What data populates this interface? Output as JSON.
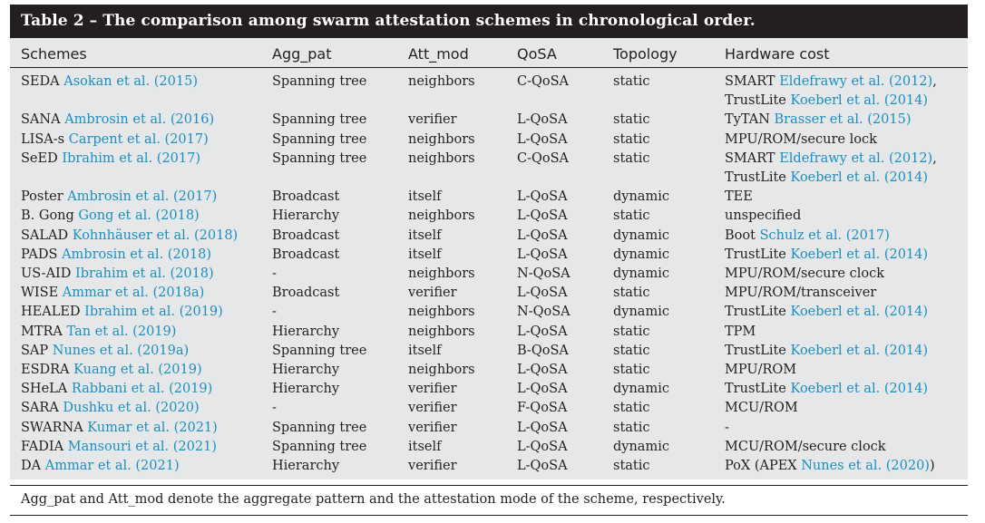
{
  "caption": "Table 2 – The comparison among swarm attestation schemes in chronological order.",
  "headers": [
    "Schemes",
    "Agg_pat",
    "Att_mod",
    "QoSA",
    "Topology",
    "Hardware cost"
  ],
  "rows": [
    {
      "name": "SEDA",
      "cite": "Asokan et al. (2015)",
      "agg": "Spanning tree",
      "att": "neighbors",
      "qosa": "C-QoSA",
      "topo": "static",
      "hw": [
        {
          "t": "SMART ",
          "c": "Eldefrawy et al. (2012)",
          "s": ","
        },
        {
          "t": "TrustLite ",
          "c": "Koeberl et al. (2014)",
          "s": ""
        }
      ]
    },
    {
      "name": "SANA",
      "cite": "Ambrosin et al. (2016)",
      "agg": "Spanning tree",
      "att": "verifier",
      "qosa": "L-QoSA",
      "topo": "static",
      "hw": [
        {
          "t": "TyTAN ",
          "c": "Brasser et al. (2015)",
          "s": ""
        }
      ]
    },
    {
      "name": "LISA-s",
      "cite": "Carpent et al. (2017)",
      "agg": "Spanning tree",
      "att": "neighbors",
      "qosa": "L-QoSA",
      "topo": "static",
      "hw": [
        {
          "t": "MPU/ROM/secure lock",
          "c": "",
          "s": ""
        }
      ]
    },
    {
      "name": "SeED",
      "cite": "Ibrahim et al. (2017)",
      "agg": "Spanning tree",
      "att": "neighbors",
      "qosa": "C-QoSA",
      "topo": "static",
      "hw": [
        {
          "t": "SMART ",
          "c": "Eldefrawy et al. (2012)",
          "s": ","
        },
        {
          "t": "TrustLite ",
          "c": "Koeberl et al. (2014)",
          "s": ""
        }
      ]
    },
    {
      "name": "Poster",
      "cite": "Ambrosin et al. (2017)",
      "agg": "Broadcast",
      "att": "itself",
      "qosa": "L-QoSA",
      "topo": "dynamic",
      "hw": [
        {
          "t": "TEE",
          "c": "",
          "s": ""
        }
      ]
    },
    {
      "name": "B. Gong",
      "cite": "Gong et al. (2018)",
      "agg": "Hierarchy",
      "att": "neighbors",
      "qosa": "L-QoSA",
      "topo": "static",
      "hw": [
        {
          "t": "unspecified",
          "c": "",
          "s": ""
        }
      ]
    },
    {
      "name": "SALAD",
      "cite": "Kohnhäuser et al. (2018)",
      "agg": "Broadcast",
      "att": "itself",
      "qosa": "L-QoSA",
      "topo": "dynamic",
      "hw": [
        {
          "t": "Boot ",
          "c": "Schulz et al. (2017)",
          "s": ""
        }
      ]
    },
    {
      "name": "PADS",
      "cite": "Ambrosin et al. (2018)",
      "agg": "Broadcast",
      "att": "itself",
      "qosa": "L-QoSA",
      "topo": "dynamic",
      "hw": [
        {
          "t": "TrustLite ",
          "c": "Koeberl et al. (2014)",
          "s": ""
        }
      ]
    },
    {
      "name": "US-AID",
      "cite": "Ibrahim et al. (2018)",
      "agg": "-",
      "att": "neighbors",
      "qosa": "N-QoSA",
      "topo": "dynamic",
      "hw": [
        {
          "t": "MPU/ROM/secure clock",
          "c": "",
          "s": ""
        }
      ]
    },
    {
      "name": "WISE",
      "cite": "Ammar et al. (2018a)",
      "agg": "Broadcast",
      "att": "verifier",
      "qosa": "L-QoSA",
      "topo": "static",
      "hw": [
        {
          "t": "MPU/ROM/transceiver",
          "c": "",
          "s": ""
        }
      ]
    },
    {
      "name": "HEALED",
      "cite": "Ibrahim et al. (2019)",
      "agg": "-",
      "att": "neighbors",
      "qosa": "N-QoSA",
      "topo": "dynamic",
      "hw": [
        {
          "t": "TrustLite ",
          "c": "Koeberl et al. (2014)",
          "s": ""
        }
      ]
    },
    {
      "name": "MTRA",
      "cite": "Tan et al. (2019)",
      "agg": "Hierarchy",
      "att": "neighbors",
      "qosa": "L-QoSA",
      "topo": "static",
      "hw": [
        {
          "t": "TPM",
          "c": "",
          "s": ""
        }
      ]
    },
    {
      "name": "SAP",
      "cite": "Nunes et al. (2019a)",
      "agg": "Spanning tree",
      "att": "itself",
      "qosa": "B-QoSA",
      "topo": "static",
      "hw": [
        {
          "t": "TrustLite ",
          "c": "Koeberl et al. (2014)",
          "s": ""
        }
      ]
    },
    {
      "name": "ESDRA",
      "cite": "Kuang et al. (2019)",
      "agg": "Hierarchy",
      "att": "neighbors",
      "qosa": "L-QoSA",
      "topo": "static",
      "hw": [
        {
          "t": "MPU/ROM",
          "c": "",
          "s": ""
        }
      ]
    },
    {
      "name": "SHeLA",
      "cite": "Rabbani et al. (2019)",
      "agg": "Hierarchy",
      "att": "verifier",
      "qosa": "L-QoSA",
      "topo": "dynamic",
      "hw": [
        {
          "t": "TrustLite ",
          "c": "Koeberl et al. (2014)",
          "s": ""
        }
      ]
    },
    {
      "name": "SARA",
      "cite": "Dushku et al. (2020)",
      "agg": "-",
      "att": "verifier",
      "qosa": "F-QoSA",
      "topo": "static",
      "hw": [
        {
          "t": "MCU/ROM",
          "c": "",
          "s": ""
        }
      ]
    },
    {
      "name": "SWARNA",
      "cite": "Kumar et al. (2021)",
      "agg": "Spanning tree",
      "att": "verifier",
      "qosa": "L-QoSA",
      "topo": "static",
      "hw": [
        {
          "t": "-",
          "c": "",
          "s": ""
        }
      ]
    },
    {
      "name": "FADIA",
      "cite": "Mansouri et al. (2021)",
      "agg": "Spanning tree",
      "att": "itself",
      "qosa": "L-QoSA",
      "topo": "dynamic",
      "hw": [
        {
          "t": "MCU/ROM/secure clock",
          "c": "",
          "s": ""
        }
      ]
    },
    {
      "name": "DA",
      "cite": "Ammar et al. (2021)",
      "agg": "Hierarchy",
      "att": "verifier",
      "qosa": "L-QoSA",
      "topo": "static",
      "hw": [
        {
          "t": "PoX (APEX ",
          "c": "Nunes et al. (2020)",
          "s": ")"
        }
      ]
    }
  ],
  "footnote": "Agg_pat and Att_mod denote the aggregate pattern and the attestation mode of the scheme, respectively."
}
